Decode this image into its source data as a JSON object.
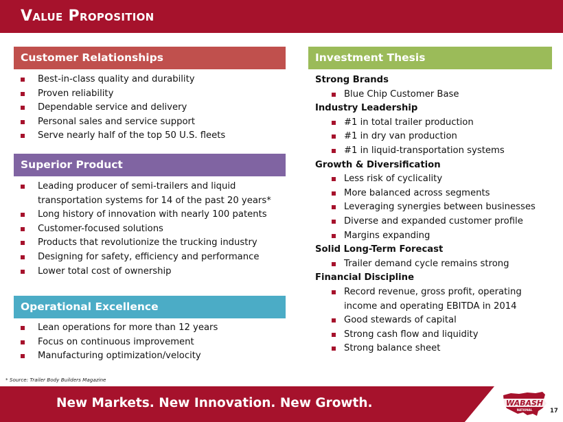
{
  "slide": {
    "title": "Value Proposition",
    "tagline": "New Markets. New Innovation. New Growth.",
    "page_number": "17",
    "footnote": "* Source: Trailer Body Builders Magazine",
    "logo_text": "WABASH",
    "logo_subtext": "NATIONAL"
  },
  "colors": {
    "header_red": "#A6122C",
    "customer_relationships": "#C0504D",
    "superior_product": "#8064A2",
    "operational_excellence": "#4BACC6",
    "investment_thesis": "#9BBB59",
    "bullet": "#A6122C"
  },
  "customer_relationships": {
    "heading": "Customer Relationships",
    "items": [
      "Best-in-class quality and durability",
      "Proven reliability",
      "Dependable service and delivery",
      "Personal sales and service support",
      "Serve nearly half of the top 50 U.S. fleets"
    ]
  },
  "superior_product": {
    "heading": "Superior Product",
    "items": [
      "Leading producer of semi-trailers and liquid",
      "transportation systems for 14 of the past 20 years*",
      "Long history of innovation with nearly 100 patents",
      "Customer-focused solutions",
      "Products that revolutionize the trucking industry",
      "Designing for safety, efficiency and performance",
      "Lower total cost of ownership"
    ]
  },
  "operational_excellence": {
    "heading": "Operational Excellence",
    "items": [
      "Lean operations for more than 12 years",
      "Focus on continuous improvement",
      "Manufacturing optimization/velocity"
    ]
  },
  "investment_thesis": {
    "heading": "Investment Thesis",
    "groups": [
      {
        "title": "Strong Brands",
        "items": [
          "Blue Chip Customer Base"
        ]
      },
      {
        "title": "Industry Leadership",
        "items": [
          "#1 in total trailer production",
          "#1 in dry van production",
          "#1 in liquid-transportation systems"
        ]
      },
      {
        "title": "Growth & Diversification",
        "items": [
          "Less risk of cyclicality",
          "More balanced across segments",
          "Leveraging synergies between businesses",
          "Diverse and expanded customer profile",
          "Margins expanding"
        ]
      },
      {
        "title": "Solid Long-Term Forecast",
        "items": [
          "Trailer demand cycle remains strong"
        ]
      },
      {
        "title": "Financial Discipline",
        "items": [
          "Record revenue, gross profit, operating",
          "income and operating EBITDA in 2014",
          "Good stewards of capital",
          "Strong cash flow and liquidity",
          "Strong balance sheet"
        ]
      }
    ]
  }
}
